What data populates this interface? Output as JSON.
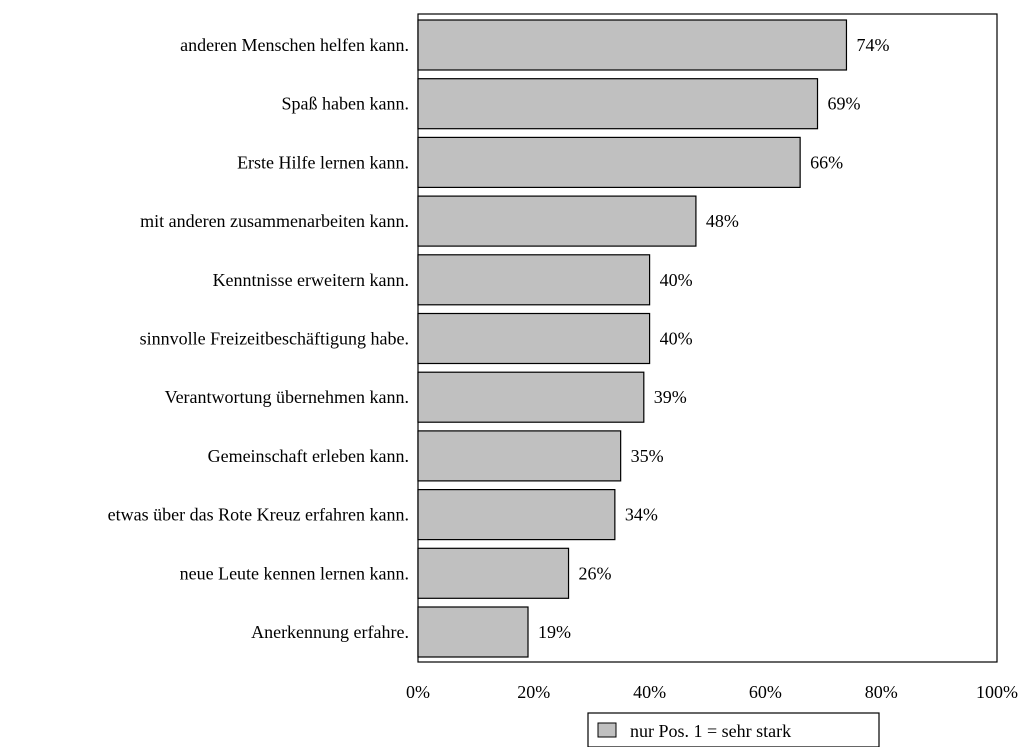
{
  "chart_data": {
    "type": "bar",
    "orientation": "horizontal",
    "categories": [
      "anderen Menschen helfen kann.",
      "Spaß haben kann.",
      "Erste Hilfe lernen kann.",
      "mit anderen zusammenarbeiten kann.",
      "Kenntnisse erweitern kann.",
      "sinnvolle Freizeitbeschäftigung habe.",
      "Verantwortung übernehmen kann.",
      "Gemeinschaft erleben kann.",
      "etwas über das Rote Kreuz erfahren kann.",
      "neue Leute kennen lernen kann.",
      "Anerkennung erfahre."
    ],
    "series": [
      {
        "name": "nur Pos. 1 = sehr stark",
        "values": [
          74,
          69,
          66,
          48,
          40,
          40,
          39,
          35,
          34,
          26,
          19
        ],
        "color": "#c0c0c0"
      }
    ],
    "value_labels": [
      "74%",
      "69%",
      "66%",
      "48%",
      "40%",
      "40%",
      "39%",
      "35%",
      "34%",
      "26%",
      "19%"
    ],
    "x_ticks": [
      "0%",
      "20%",
      "40%",
      "60%",
      "80%",
      "100%"
    ],
    "xlim": [
      0,
      100
    ],
    "grid": false,
    "legend": "bottom-center"
  }
}
